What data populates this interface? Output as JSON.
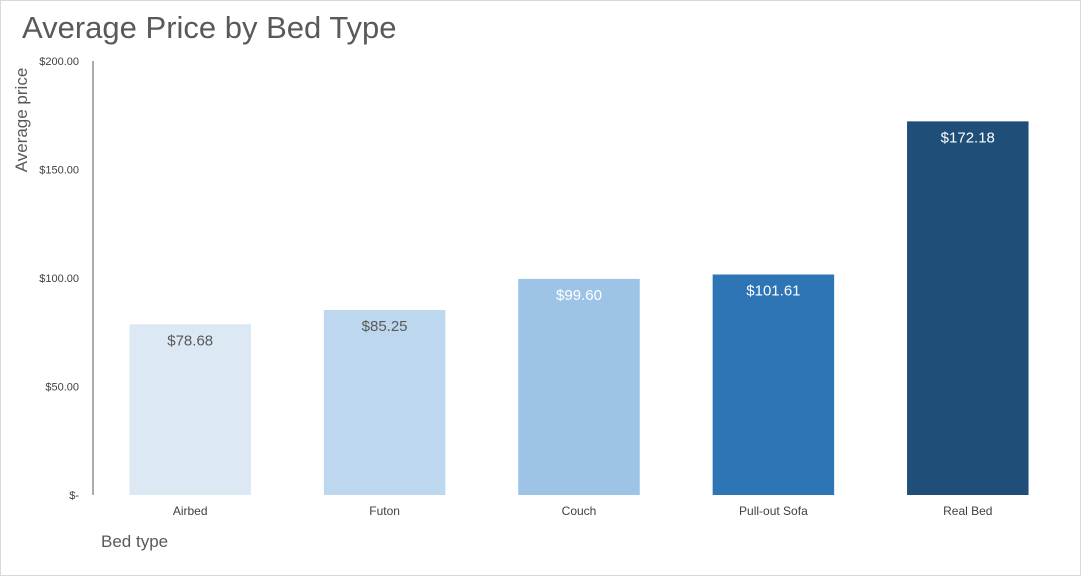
{
  "chart_data": {
    "type": "bar",
    "title": "Average Price by Bed Type",
    "xlabel": "Bed type",
    "ylabel": "Average price",
    "categories": [
      "Airbed",
      "Futon",
      "Couch",
      "Pull-out Sofa",
      "Real Bed"
    ],
    "values": [
      78.68,
      85.25,
      99.6,
      101.61,
      172.18
    ],
    "data_labels": [
      "$78.68",
      "$85.25",
      "$99.60",
      "$101.61",
      "$172.18"
    ],
    "ylim": [
      0,
      200
    ],
    "yticks": [
      0,
      50,
      100,
      150,
      200
    ],
    "ytick_labels": [
      "$-",
      "$50.00",
      "$100.00",
      "$150.00",
      "$200.00"
    ],
    "grid": false,
    "legend": "none",
    "bar_colors": [
      "#dde8f5",
      "#bdd7ee",
      "#9dc3e6",
      "#2e75b6",
      "#1f4e79"
    ],
    "label_colors": [
      "#595959",
      "#595959",
      "#ffffff",
      "#ffffff",
      "#ffffff"
    ],
    "axis_color": "#595959"
  }
}
